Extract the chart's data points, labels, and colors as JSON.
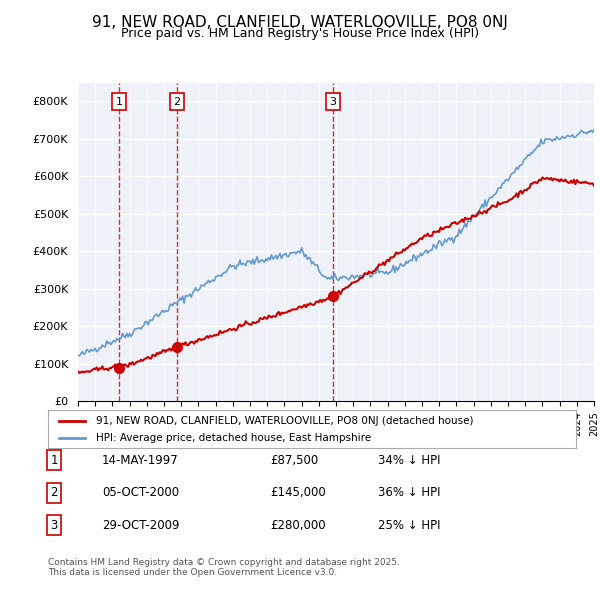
{
  "title": "91, NEW ROAD, CLANFIELD, WATERLOOVILLE, PO8 0NJ",
  "subtitle": "Price paid vs. HM Land Registry's House Price Index (HPI)",
  "x_start_year": 1995,
  "x_end_year": 2025,
  "y_min": 0,
  "y_max": 850000,
  "y_ticks": [
    0,
    100000,
    200000,
    300000,
    400000,
    500000,
    600000,
    700000,
    800000
  ],
  "y_tick_labels": [
    "£0",
    "£100K",
    "£200K",
    "£300K",
    "£400K",
    "£500K",
    "£600K",
    "£700K",
    "£800K"
  ],
  "sale_dates": [
    "1997-05-14",
    "2000-10-05",
    "2009-10-29"
  ],
  "sale_prices": [
    87500,
    145000,
    280000
  ],
  "sale_labels": [
    "1",
    "2",
    "3"
  ],
  "sale_color": "#cc0000",
  "hpi_color": "#6699cc",
  "vline_color": "#cc0000",
  "bg_color": "#eef2f8",
  "grid_color": "#ffffff",
  "legend_line1": "91, NEW ROAD, CLANFIELD, WATERLOOVILLE, PO8 0NJ (detached house)",
  "legend_line2": "HPI: Average price, detached house, East Hampshire",
  "table_rows": [
    {
      "num": "1",
      "date": "14-MAY-1997",
      "price": "£87,500",
      "pct": "34% ↓ HPI"
    },
    {
      "num": "2",
      "date": "05-OCT-2000",
      "price": "£145,000",
      "pct": "36% ↓ HPI"
    },
    {
      "num": "3",
      "date": "29-OCT-2009",
      "price": "£280,000",
      "pct": "25% ↓ HPI"
    }
  ],
  "footer": "Contains HM Land Registry data © Crown copyright and database right 2025.\nThis data is licensed under the Open Government Licence v3.0."
}
